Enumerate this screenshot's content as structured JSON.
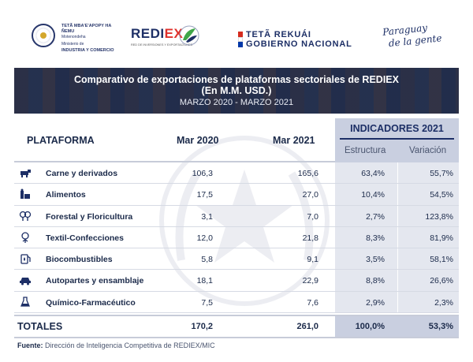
{
  "logos": {
    "ministry_line1": "TETÃ MBA'E'APOPY HA ÑEMU",
    "ministry_line2": "Motenondeha",
    "ministry_line3": "Ministerio de",
    "ministry_line4": "INDUSTRIA Y COMERCIO",
    "rediex_main": "REDI",
    "rediex_ex": "EX",
    "rediex_tag": "RED DE INVERSIONES Y EXPORTACIONES",
    "gov_line1": "TETÃ REKUÁI",
    "gov_line2": "GOBIERNO NACIONAL",
    "slogan_line1": "Paraguay",
    "slogan_line2": "de la gente"
  },
  "banner": {
    "title_line1": "Comparativo de exportaciones de plataformas sectoriales de REDIEX",
    "title_line2": "(En M.M. USD.)",
    "period": "MARZO 2020 - MARZO 2021"
  },
  "table": {
    "col_platform": "PLATAFORMA",
    "col_2020": "Mar 2020",
    "col_2021": "Mar 2021",
    "indicators_title": "INDICADORES 2021",
    "col_structure": "Estructura",
    "col_variation": "Variación",
    "rows": [
      {
        "icon": "cattle-icon",
        "name": "Carne y derivados",
        "v2020": "106,3",
        "v2021": "165,6",
        "estructura": "63,4%",
        "variacion": "55,7%"
      },
      {
        "icon": "food-icon",
        "name": "Alimentos",
        "v2020": "17,5",
        "v2021": "27,0",
        "estructura": "10,4%",
        "variacion": "54,5%"
      },
      {
        "icon": "tree-icon",
        "name": "Forestal y Floricultura",
        "v2020": "3,1",
        "v2021": "7,0",
        "estructura": "2,7%",
        "variacion": "123,8%"
      },
      {
        "icon": "cotton-icon",
        "name": "Textil-Confecciones",
        "v2020": "12,0",
        "v2021": "21,8",
        "estructura": "8,3%",
        "variacion": "81,9%"
      },
      {
        "icon": "fuel-icon",
        "name": "Biocombustibles",
        "v2020": "5,8",
        "v2021": "9,1",
        "estructura": "3,5%",
        "variacion": "58,1%"
      },
      {
        "icon": "car-icon",
        "name": "Autopartes y ensamblaje",
        "v2020": "18,1",
        "v2021": "22,9",
        "estructura": "8,8%",
        "variacion": "26,6%"
      },
      {
        "icon": "flask-icon",
        "name": "Químico-Farmacéutico",
        "v2020": "7,5",
        "v2021": "7,6",
        "estructura": "2,9%",
        "variacion": "2,3%"
      }
    ],
    "totals": {
      "label": "TOTALES",
      "v2020": "170,2",
      "v2021": "261,0",
      "estructura": "100,0%",
      "variacion": "53,3%"
    }
  },
  "footer": {
    "label": "Fuente:",
    "text": " Dirección de Inteligencia Competitiva de REDIEX/MIC"
  }
}
